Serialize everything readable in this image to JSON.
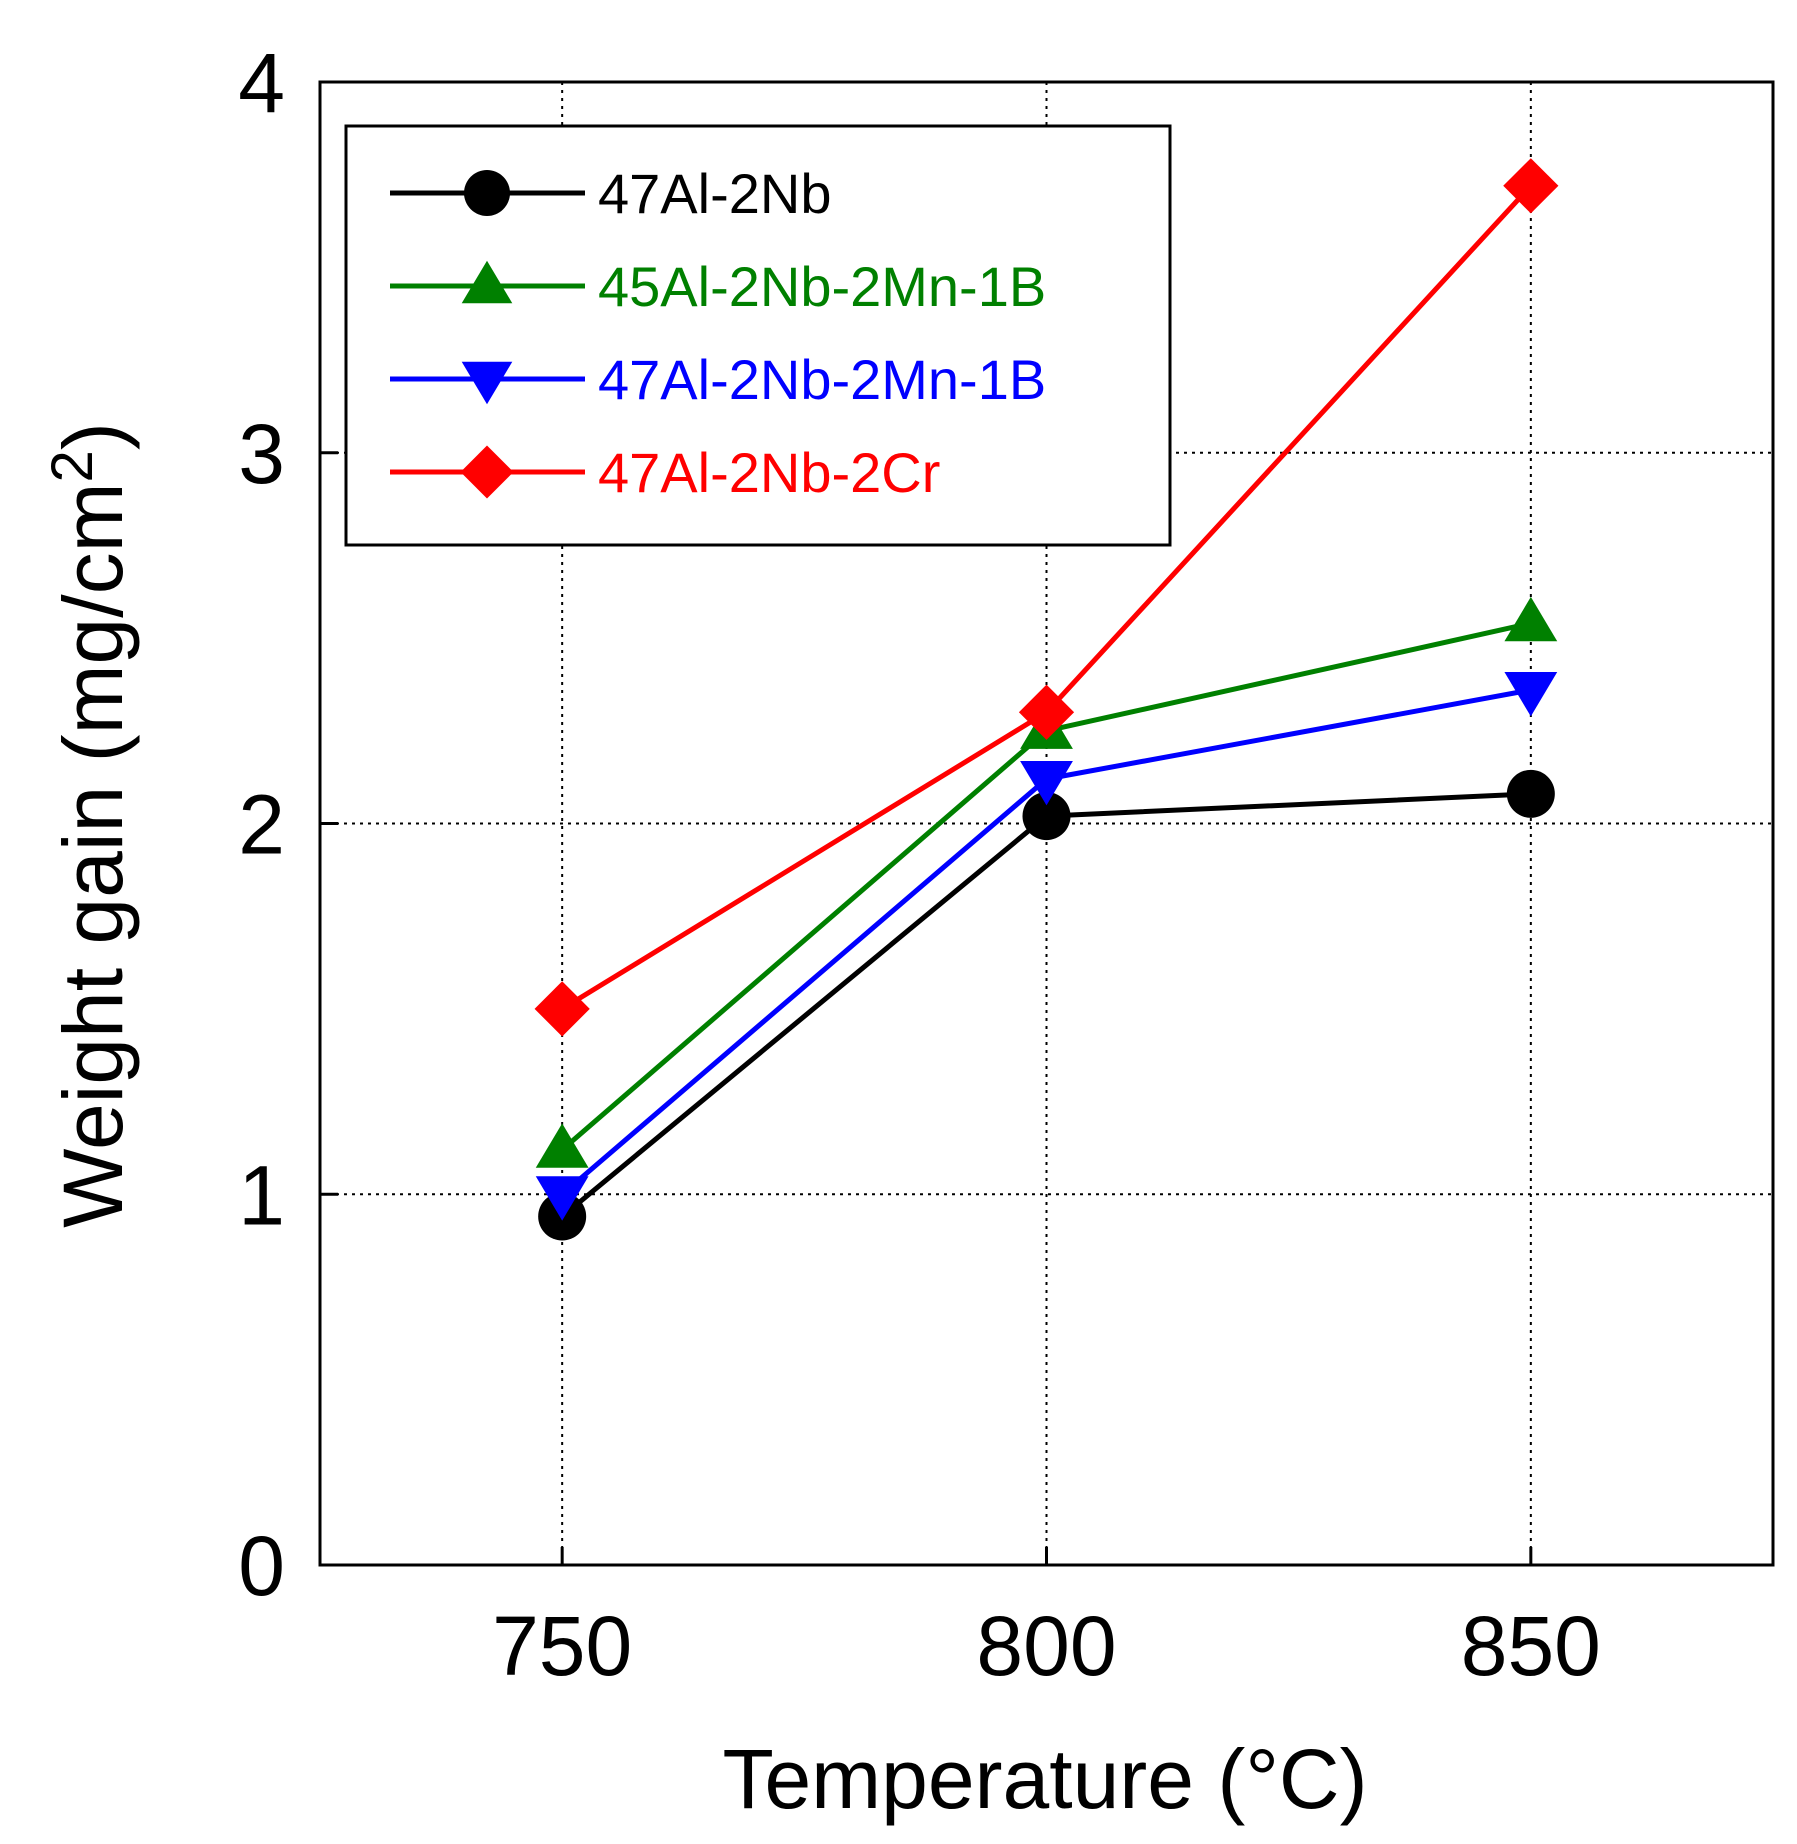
{
  "chart_data": {
    "type": "line",
    "title": "",
    "xlabel": "Temperature (",
    "xlabel_unit": "°C",
    "xlabel_close": ")",
    "ylabel": "Weight gain (mg/cm",
    "ylabel_sup": "2",
    "ylabel_close": ")",
    "x": [
      750,
      800,
      850
    ],
    "xlim": [
      725,
      875
    ],
    "ylim": [
      0,
      4
    ],
    "xticks": [
      750,
      800,
      850
    ],
    "yticks": [
      0,
      1,
      2,
      3,
      4
    ],
    "xtick_labels": [
      "750",
      "800",
      "850"
    ],
    "ytick_labels": [
      "0",
      "1",
      "2",
      "3",
      "4"
    ],
    "grid": true,
    "legend_position": "top-left",
    "series": [
      {
        "name": "47Al-2Nb",
        "values": [
          0.94,
          2.02,
          2.08
        ],
        "color": "#000000",
        "marker": "circle"
      },
      {
        "name": "45Al-2Nb-2Mn-1B",
        "values": [
          1.12,
          2.25,
          2.54
        ],
        "color": "#008000",
        "marker": "triangle-up"
      },
      {
        "name": "47Al-2Nb-2Mn-1B",
        "values": [
          1.0,
          2.12,
          2.36
        ],
        "color": "#0000ff",
        "marker": "triangle-down"
      },
      {
        "name": "47Al-2Nb-2Cr",
        "values": [
          1.5,
          2.3,
          3.72
        ],
        "color": "#ff0000",
        "marker": "diamond"
      }
    ]
  }
}
